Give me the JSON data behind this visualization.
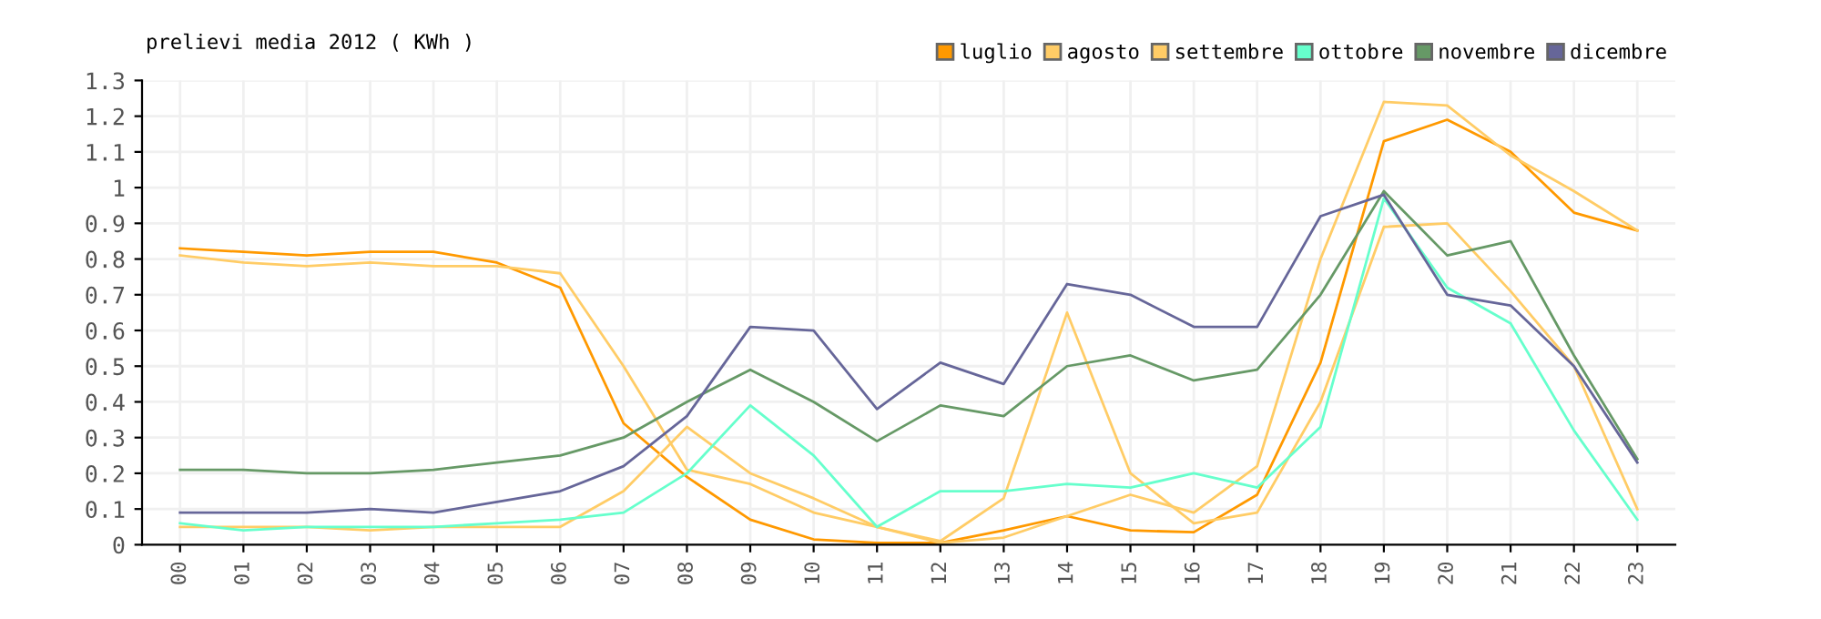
{
  "chart_data": {
    "type": "line",
    "title": "prelievi media 2012 ( KWh )",
    "categories": [
      "00",
      "01",
      "02",
      "03",
      "04",
      "05",
      "06",
      "07",
      "08",
      "09",
      "10",
      "11",
      "12",
      "13",
      "14",
      "15",
      "16",
      "17",
      "18",
      "19",
      "20",
      "21",
      "22",
      "23"
    ],
    "series": [
      {
        "name": "luglio",
        "color": "#ff9900",
        "values": [
          0.83,
          0.82,
          0.81,
          0.82,
          0.82,
          0.79,
          0.72,
          0.34,
          0.19,
          0.07,
          0.015,
          0.005,
          0.005,
          0.04,
          0.08,
          0.04,
          0.035,
          0.14,
          0.51,
          1.13,
          1.19,
          1.1,
          0.93,
          0.88
        ]
      },
      {
        "name": "agosto",
        "color": "#ffcc66",
        "values": [
          0.81,
          0.79,
          0.78,
          0.79,
          0.78,
          0.78,
          0.76,
          0.5,
          0.21,
          0.17,
          0.09,
          0.05,
          0.005,
          0.02,
          0.08,
          0.14,
          0.09,
          0.22,
          0.8,
          1.24,
          1.23,
          1.09,
          0.99,
          0.88
        ]
      },
      {
        "name": "settembre",
        "color": "#ffcc66",
        "values": [
          0.05,
          0.05,
          0.05,
          0.04,
          0.05,
          0.05,
          0.05,
          0.15,
          0.33,
          0.2,
          0.13,
          0.05,
          0.01,
          0.13,
          0.65,
          0.2,
          0.06,
          0.09,
          0.4,
          0.89,
          0.9,
          0.71,
          0.5,
          0.1
        ]
      },
      {
        "name": "ottobre",
        "color": "#66ffcc",
        "values": [
          0.06,
          0.04,
          0.05,
          0.05,
          0.05,
          0.06,
          0.07,
          0.09,
          0.2,
          0.39,
          0.25,
          0.05,
          0.15,
          0.15,
          0.17,
          0.16,
          0.2,
          0.16,
          0.33,
          0.97,
          0.72,
          0.62,
          0.32,
          0.07
        ]
      },
      {
        "name": "novembre",
        "color": "#669966",
        "values": [
          0.21,
          0.21,
          0.2,
          0.2,
          0.21,
          0.23,
          0.25,
          0.3,
          0.4,
          0.49,
          0.4,
          0.29,
          0.39,
          0.36,
          0.5,
          0.53,
          0.46,
          0.49,
          0.7,
          0.99,
          0.81,
          0.85,
          0.53,
          0.24
        ]
      },
      {
        "name": "dicembre",
        "color": "#666699",
        "values": [
          0.09,
          0.09,
          0.09,
          0.1,
          0.09,
          0.12,
          0.15,
          0.22,
          0.36,
          0.61,
          0.6,
          0.38,
          0.51,
          0.45,
          0.73,
          0.7,
          0.61,
          0.61,
          0.92,
          0.98,
          0.7,
          0.67,
          0.5,
          0.23
        ]
      }
    ],
    "ylim": [
      0,
      1.3
    ],
    "yticks": [
      0,
      0.1,
      0.2,
      0.3,
      0.4,
      0.5,
      0.6,
      0.7,
      0.8,
      0.9,
      1,
      1.1,
      1.2,
      1.3
    ],
    "grid": true,
    "legend": "top right",
    "marker": "none",
    "line_style": "solid"
  }
}
